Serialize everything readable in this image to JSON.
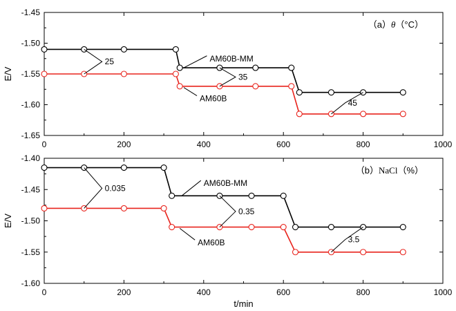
{
  "chart_data": [
    {
      "type": "line",
      "panel_label": "（a）",
      "panel_symbol": "θ",
      "panel_unit": "（°C）",
      "ylabel": "E/V",
      "xlabel": "",
      "xlim": [
        0,
        1000
      ],
      "ylim": [
        -1.65,
        -1.45
      ],
      "x_ticks": [
        0,
        200,
        400,
        600,
        800,
        1000
      ],
      "y_ticks": [
        -1.65,
        -1.6,
        -1.55,
        -1.5,
        -1.45
      ],
      "y_tick_labels": [
        "-1.65",
        "-1.60",
        "-1.55",
        "-1.50",
        "-1.45"
      ],
      "grid": false,
      "series": [
        {
          "name": "AM60B-MM",
          "color": "#000000",
          "line": [
            [
              0,
              -1.51
            ],
            [
              330,
              -1.51
            ],
            [
              340,
              -1.54
            ],
            [
              620,
              -1.54
            ],
            [
              640,
              -1.58
            ],
            [
              900,
              -1.58
            ]
          ],
          "markers": [
            [
              0,
              -1.51
            ],
            [
              100,
              -1.51
            ],
            [
              200,
              -1.51
            ],
            [
              330,
              -1.51
            ],
            [
              340,
              -1.54
            ],
            [
              440,
              -1.54
            ],
            [
              530,
              -1.54
            ],
            [
              620,
              -1.54
            ],
            [
              640,
              -1.58
            ],
            [
              720,
              -1.58
            ],
            [
              800,
              -1.58
            ],
            [
              900,
              -1.58
            ]
          ]
        },
        {
          "name": "AM60B",
          "color": "#e8231c",
          "line": [
            [
              0,
              -1.55
            ],
            [
              330,
              -1.55
            ],
            [
              340,
              -1.57
            ],
            [
              620,
              -1.57
            ],
            [
              640,
              -1.615
            ],
            [
              900,
              -1.615
            ]
          ],
          "markers": [
            [
              0,
              -1.55
            ],
            [
              100,
              -1.55
            ],
            [
              200,
              -1.55
            ],
            [
              330,
              -1.55
            ],
            [
              340,
              -1.57
            ],
            [
              440,
              -1.57
            ],
            [
              530,
              -1.57
            ],
            [
              620,
              -1.57
            ],
            [
              640,
              -1.615
            ],
            [
              720,
              -1.615
            ],
            [
              800,
              -1.615
            ],
            [
              900,
              -1.615
            ]
          ]
        }
      ],
      "series_labels": [
        {
          "text": "AM60B-MM",
          "x": 415,
          "y": -1.525,
          "from": [
            350,
            -1.54
          ]
        },
        {
          "text": "AM60B",
          "x": 390,
          "y": -1.59,
          "from": [
            350,
            -1.572
          ]
        }
      ],
      "annotations": [
        {
          "text": "25",
          "upper": [
            100,
            -1.51
          ],
          "apex": [
            145,
            -1.53
          ],
          "lower": [
            100,
            -1.55
          ]
        },
        {
          "text": "35",
          "upper": [
            440,
            -1.54
          ],
          "apex": [
            480,
            -1.555
          ],
          "lower": [
            440,
            -1.57
          ]
        },
        {
          "text": "45",
          "upper": [
            800,
            -1.58
          ],
          "apex": [
            755,
            -1.597
          ],
          "lower": [
            720,
            -1.615
          ]
        }
      ]
    },
    {
      "type": "line",
      "panel_label": "（b）",
      "panel_symbol": "NaCl",
      "panel_unit": "（%）",
      "ylabel": "E/V",
      "xlabel": "t/min",
      "xlim": [
        0,
        1000
      ],
      "ylim": [
        -1.6,
        -1.4
      ],
      "x_ticks": [
        0,
        200,
        400,
        600,
        800,
        1000
      ],
      "y_ticks": [
        -1.6,
        -1.55,
        -1.5,
        -1.45,
        -1.4
      ],
      "y_tick_labels": [
        "-1.60",
        "-1.55",
        "-1.50",
        "-1.45",
        "-1.40"
      ],
      "grid": false,
      "series": [
        {
          "name": "AM60B-MM",
          "color": "#000000",
          "line": [
            [
              0,
              -1.415
            ],
            [
              300,
              -1.415
            ],
            [
              320,
              -1.46
            ],
            [
              600,
              -1.46
            ],
            [
              630,
              -1.51
            ],
            [
              900,
              -1.51
            ]
          ],
          "markers": [
            [
              0,
              -1.415
            ],
            [
              100,
              -1.415
            ],
            [
              200,
              -1.415
            ],
            [
              300,
              -1.415
            ],
            [
              320,
              -1.46
            ],
            [
              440,
              -1.46
            ],
            [
              520,
              -1.46
            ],
            [
              600,
              -1.46
            ],
            [
              630,
              -1.51
            ],
            [
              720,
              -1.51
            ],
            [
              800,
              -1.51
            ],
            [
              900,
              -1.51
            ]
          ]
        },
        {
          "name": "AM60B",
          "color": "#e8231c",
          "line": [
            [
              0,
              -1.48
            ],
            [
              300,
              -1.48
            ],
            [
              320,
              -1.51
            ],
            [
              600,
              -1.51
            ],
            [
              630,
              -1.55
            ],
            [
              900,
              -1.55
            ]
          ],
          "markers": [
            [
              0,
              -1.48
            ],
            [
              100,
              -1.48
            ],
            [
              200,
              -1.48
            ],
            [
              300,
              -1.48
            ],
            [
              320,
              -1.51
            ],
            [
              440,
              -1.51
            ],
            [
              520,
              -1.51
            ],
            [
              600,
              -1.51
            ],
            [
              630,
              -1.55
            ],
            [
              720,
              -1.55
            ],
            [
              800,
              -1.55
            ],
            [
              900,
              -1.55
            ]
          ]
        }
      ],
      "series_labels": [
        {
          "text": "AM60B-MM",
          "x": 400,
          "y": -1.44,
          "from": [
            345,
            -1.46
          ]
        },
        {
          "text": "AM60B",
          "x": 385,
          "y": -1.535,
          "from": [
            340,
            -1.512
          ]
        }
      ],
      "annotations": [
        {
          "text": "0.035",
          "upper": [
            100,
            -1.415
          ],
          "apex": [
            145,
            -1.448
          ],
          "lower": [
            100,
            -1.48
          ]
        },
        {
          "text": "0.35",
          "upper": [
            440,
            -1.46
          ],
          "apex": [
            480,
            -1.485
          ],
          "lower": [
            440,
            -1.51
          ]
        },
        {
          "text": "3.5",
          "upper": [
            800,
            -1.51
          ],
          "apex": [
            755,
            -1.53
          ],
          "lower": [
            720,
            -1.55
          ]
        }
      ]
    }
  ]
}
